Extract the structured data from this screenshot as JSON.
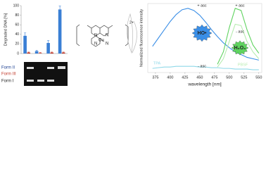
{
  "chart_data": [
    {
      "type": "bar",
      "y_label": "Degraded DNA [%]",
      "categories": [
        null,
        null,
        null,
        null
      ],
      "series": [
        {
          "color": "#3a7fd5",
          "values": [
            37,
            5,
            22,
            92
          ],
          "errors": [
            6,
            2,
            5,
            7
          ]
        },
        {
          "color": "#c0392b",
          "values": [
            2,
            1,
            2,
            2
          ],
          "errors": [
            1,
            1,
            1,
            1
          ]
        }
      ],
      "ylim": [
        0,
        100
      ],
      "yticks": [
        0,
        20,
        40,
        60,
        80,
        100
      ]
    },
    {
      "type": "line",
      "x_label": "wavelength [nm]",
      "y_label": "Normalized fluorescence intensity",
      "x": [
        370,
        380,
        390,
        400,
        410,
        420,
        430,
        440,
        450,
        460,
        470,
        480,
        490,
        500,
        510,
        520,
        530,
        540,
        550
      ],
      "series": [
        {
          "color": "#3a8ee6",
          "values": [
            0.38,
            0.5,
            0.62,
            0.74,
            0.84,
            0.91,
            0.93,
            0.9,
            0.83,
            0.73,
            0.62,
            0.52,
            0.43,
            0.36,
            0.3,
            0.26,
            0.22,
            0.2,
            0.18
          ]
        },
        {
          "color": "#8fd8e8",
          "values": [
            0.06,
            0.07,
            0.08,
            0.08,
            0.09,
            0.09,
            0.09,
            0.09,
            0.08,
            0.08,
            0.07,
            0.07,
            0.06,
            0.06,
            0.05,
            0.05,
            0.05,
            0.04,
            0.04
          ]
        },
        {
          "color": "#5fd35f",
          "values": [
            null,
            null,
            null,
            null,
            null,
            null,
            null,
            null,
            null,
            null,
            null,
            0.12,
            0.3,
            0.65,
            0.93,
            0.9,
            0.62,
            0.4,
            0.28
          ]
        },
        {
          "color": "#b6ecb0",
          "values": [
            null,
            null,
            null,
            null,
            null,
            null,
            null,
            null,
            null,
            null,
            null,
            0.08,
            0.2,
            0.45,
            0.7,
            0.68,
            0.45,
            0.3,
            0.2
          ]
        }
      ],
      "xlim": [
        362,
        555
      ],
      "xticks": [
        375,
        400,
        425,
        450,
        475,
        500,
        525,
        550
      ],
      "ylim": [
        0,
        1
      ],
      "annotations": [
        "+ asc",
        "- asc",
        "+ asc",
        "- asc",
        "TPA",
        "PBSF",
        "HO•",
        "H₂O₂"
      ]
    }
  ],
  "gel": {
    "labels": [
      "Form II",
      "Form III",
      "Form I"
    ]
  },
  "structure": {
    "metal": "Cu",
    "charge": "2+",
    "atoms": [
      "N",
      "N",
      "N",
      "N"
    ]
  }
}
